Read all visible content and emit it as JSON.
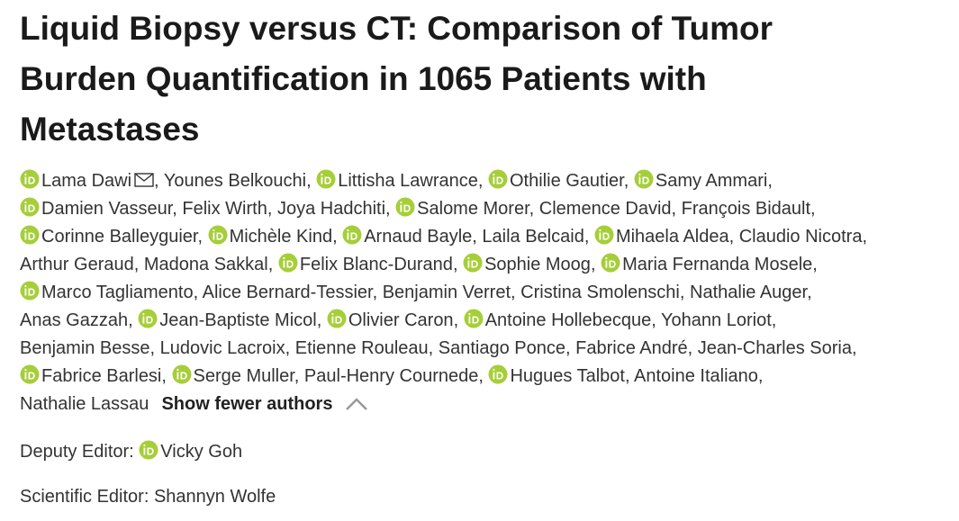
{
  "title": "Liquid Biopsy versus CT: Comparison of Tumor Burden Quantification in 1065 Patients with Metastases",
  "authors": {
    "separator": ",",
    "lines": [
      [
        {
          "name": "Lama Dawi",
          "orcid": true,
          "email": true
        },
        {
          "name": "Younes Belkouchi",
          "orcid": false
        },
        {
          "name": "Littisha Lawrance",
          "orcid": true
        },
        {
          "name": "Othilie Gautier",
          "orcid": true
        },
        {
          "name": "Samy Ammari",
          "orcid": true
        }
      ],
      [
        {
          "name": "Damien Vasseur",
          "orcid": true
        },
        {
          "name": "Felix Wirth",
          "orcid": false
        },
        {
          "name": "Joya Hadchiti",
          "orcid": false
        },
        {
          "name": "Salome Morer",
          "orcid": true
        },
        {
          "name": "Clemence David",
          "orcid": false
        },
        {
          "name": "François Bidault",
          "orcid": false
        }
      ],
      [
        {
          "name": "Corinne Balleyguier",
          "orcid": true
        },
        {
          "name": "Michèle Kind",
          "orcid": true
        },
        {
          "name": "Arnaud Bayle",
          "orcid": true
        },
        {
          "name": "Laila Belcaid",
          "orcid": false
        },
        {
          "name": "Mihaela Aldea",
          "orcid": true
        },
        {
          "name": "Claudio Nicotra",
          "orcid": false
        }
      ],
      [
        {
          "name": "Arthur Geraud",
          "orcid": false
        },
        {
          "name": "Madona Sakkal",
          "orcid": false
        },
        {
          "name": "Felix Blanc-Durand",
          "orcid": true
        },
        {
          "name": "Sophie Moog",
          "orcid": true
        },
        {
          "name": "Maria Fernanda Mosele",
          "orcid": true
        }
      ],
      [
        {
          "name": "Marco Tagliamento",
          "orcid": true
        },
        {
          "name": "Alice Bernard-Tessier",
          "orcid": false
        },
        {
          "name": "Benjamin Verret",
          "orcid": false
        },
        {
          "name": "Cristina Smolenschi",
          "orcid": false
        },
        {
          "name": "Nathalie Auger",
          "orcid": false
        }
      ],
      [
        {
          "name": "Anas Gazzah",
          "orcid": false
        },
        {
          "name": "Jean-Baptiste Micol",
          "orcid": true
        },
        {
          "name": "Olivier Caron",
          "orcid": true
        },
        {
          "name": "Antoine Hollebecque",
          "orcid": true
        },
        {
          "name": "Yohann Loriot",
          "orcid": false
        }
      ],
      [
        {
          "name": "Benjamin Besse",
          "orcid": false
        },
        {
          "name": "Ludovic Lacroix",
          "orcid": false
        },
        {
          "name": "Etienne Rouleau",
          "orcid": false
        },
        {
          "name": "Santiago Ponce",
          "orcid": false
        },
        {
          "name": "Fabrice André",
          "orcid": false
        },
        {
          "name": "Jean-Charles Soria",
          "orcid": false
        }
      ],
      [
        {
          "name": "Fabrice Barlesi",
          "orcid": true
        },
        {
          "name": "Serge Muller",
          "orcid": true
        },
        {
          "name": "Paul-Henry Cournede",
          "orcid": false
        },
        {
          "name": "Hugues Talbot",
          "orcid": true
        },
        {
          "name": "Antoine Italiano",
          "orcid": false
        }
      ],
      [
        {
          "name": "Nathalie Lassau",
          "orcid": false
        }
      ]
    ],
    "toggle": "Show fewer authors"
  },
  "editors": [
    {
      "role": "Deputy Editor:",
      "name": "Vicky Goh",
      "orcid": true
    },
    {
      "role": "Scientific Editor:",
      "name": "Shannyn Wolfe",
      "orcid": false
    }
  ]
}
